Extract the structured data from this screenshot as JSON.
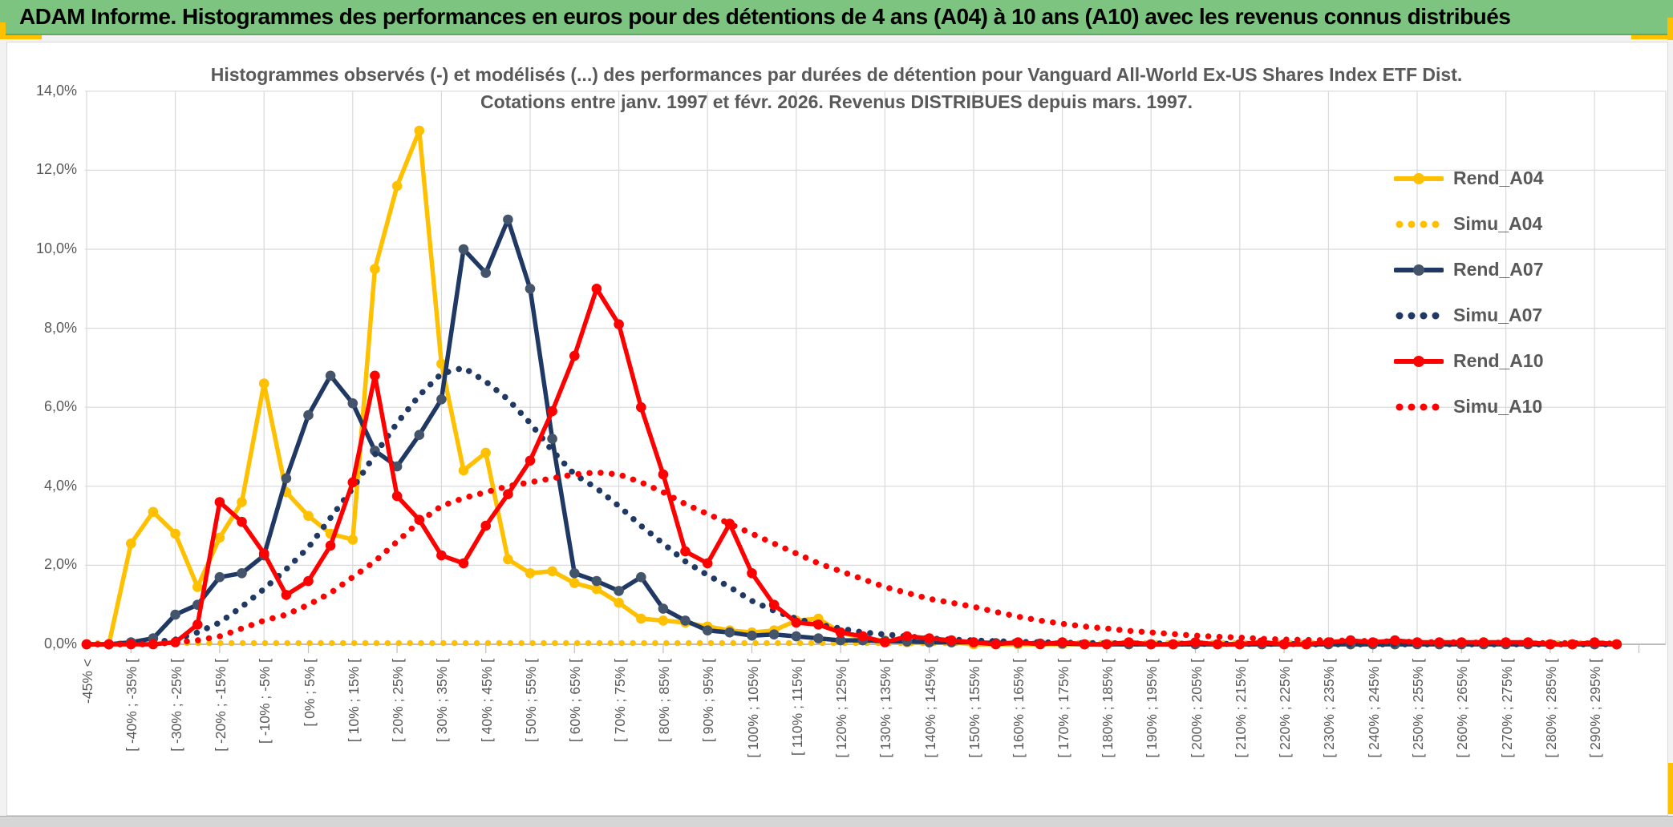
{
  "header": {
    "title": "ADAM Informe. Histogrammes des performances en euros pour des détentions de 4 ans (A04) à 10 ans (A10) avec les revenus connus distribués"
  },
  "colors": {
    "header_bg": "#7CC47F",
    "gold": "#FFC000",
    "navy": "#1F3864",
    "navy_marker": "#44546A",
    "red": "#FF0000",
    "grid": "#D9D9D9",
    "axis": "#A6A6A6",
    "tick": "#BFBFBF",
    "text_gray": "#595959"
  },
  "chart_data": {
    "type": "line",
    "title_line1": "Histogrammes observés (-) et modélisés (...) des performances par durées de détention pour Vanguard All-World Ex-US Shares Index ETF Dist.",
    "title_line2": "Cotations entre janv. 1997 et févr. 2026. Revenus DISTRIBUES depuis mars. 1997.",
    "ylim": [
      0,
      14
    ],
    "y_tick_step": 2,
    "y_tick_labels": [
      "0,0%",
      "2,0%",
      "4,0%",
      "6,0%",
      "8,0%",
      "10,0%",
      "12,0%",
      "14,0%"
    ],
    "grid": true,
    "legend_position": "right",
    "n_buckets": 70,
    "label_every": 2,
    "x_labels": [
      "-45% <",
      "[ -40% ; -35% [",
      "[ -30% ; -25% [",
      "[ -20% ; -15% [",
      "[ -10% ; -5% [",
      "[ 0% ; 5% [",
      "[ 10% ; 15% [",
      "[ 20% ; 25% [",
      "[ 30% ; 35% [",
      "[ 40% ; 45% [",
      "[ 50% ; 55% [",
      "[ 60% ; 65% [",
      "[ 70% ; 75% [",
      "[ 80% ; 85% [",
      "[ 90% ; 95% [",
      "[ 100% ; 105% [",
      "[ 110% ; 115% [",
      "[ 120% ; 125% [",
      "[ 130% ; 135% [",
      "[ 140% ; 145% [",
      "[ 150% ; 155% [",
      "[ 160% ; 165% [",
      "[ 170% ; 175% [",
      "[ 180% ; 185% [",
      "[ 190% ; 195% [",
      "[ 200% ; 205% [",
      "[ 210% ; 215% [",
      "[ 220% ; 225% [",
      "[ 230% ; 235% [",
      "[ 240% ; 245% [",
      "[ 250% ; 255% [",
      "[ 260% ; 265% [",
      "[ 270% ; 275% [",
      "[ 280% ; 285% [",
      "[ 290% ; 295% ["
    ],
    "series": [
      {
        "name": "Rend_A04",
        "color": "#FFC000",
        "marker_color": "#FFC000",
        "style": "solid",
        "marker": true,
        "values": [
          0,
          0,
          2.55,
          3.35,
          2.8,
          1.45,
          2.7,
          3.6,
          6.6,
          3.85,
          3.25,
          2.8,
          2.65,
          9.5,
          11.6,
          13.0,
          7.1,
          4.4,
          4.85,
          2.15,
          1.8,
          1.85,
          1.55,
          1.4,
          1.05,
          0.65,
          0.6,
          0.55,
          0.45,
          0.35,
          0.3,
          0.35,
          0.6,
          0.65,
          0.3,
          0.15,
          0.1,
          0.05,
          0.05,
          0.05,
          0,
          0,
          0,
          0,
          0,
          0,
          0,
          0,
          0,
          0,
          0,
          0,
          0,
          0,
          0,
          0,
          0,
          0,
          0,
          0,
          0,
          0,
          0,
          0,
          0,
          0,
          0,
          0,
          0,
          0
        ]
      },
      {
        "name": "Simu_A04",
        "color": "#FFC000",
        "marker_color": "#FFC000",
        "style": "dotted",
        "marker": false,
        "values": [
          0.03,
          0.03,
          0.03,
          0.03,
          0.03,
          0.03,
          0.03,
          0.03,
          0.03,
          0.03,
          0.03,
          0.03,
          0.03,
          0.03,
          0.03,
          0.03,
          0.03,
          0.03,
          0.03,
          0.03,
          0.03,
          0.03,
          0.03,
          0.03,
          0.03,
          0.03,
          0.03,
          0.03,
          0.03,
          0.03,
          0.03,
          0.03,
          0.03,
          0.03,
          0.03,
          0.03,
          0.03,
          0.03,
          0.03,
          0.03,
          0.03,
          0.03,
          0.03,
          0.03,
          0.03,
          0.03,
          0.03,
          0.03,
          0.03,
          0.03,
          0.03,
          0.03,
          0.03,
          0.03,
          0.03,
          0.03,
          0.03,
          0.03,
          0.03,
          0.03,
          0.03,
          0.03,
          0.03,
          0.03,
          0.03,
          0.03,
          0.03,
          0.03,
          0.03,
          0.03
        ]
      },
      {
        "name": "Rend_A07",
        "color": "#1F3864",
        "marker_color": "#44546A",
        "style": "solid",
        "marker": true,
        "values": [
          0,
          0,
          0.05,
          0.15,
          0.75,
          1.0,
          1.7,
          1.8,
          2.25,
          4.2,
          5.8,
          6.8,
          6.1,
          4.9,
          4.5,
          5.3,
          6.2,
          10.0,
          9.4,
          10.75,
          9.0,
          5.2,
          1.8,
          1.6,
          1.35,
          1.7,
          0.9,
          0.6,
          0.35,
          0.3,
          0.22,
          0.25,
          0.2,
          0.15,
          0.1,
          0.1,
          0.08,
          0.07,
          0.05,
          0.05,
          0.05,
          0.03,
          0.03,
          0.02,
          0.02,
          0,
          0,
          0,
          0,
          0,
          0,
          0,
          0,
          0,
          0,
          0,
          0,
          0,
          0,
          0,
          0,
          0,
          0,
          0,
          0,
          0,
          0,
          0,
          0,
          0
        ]
      },
      {
        "name": "Simu_A07",
        "color": "#1F3864",
        "marker_color": "#1F3864",
        "style": "dotted",
        "marker": false,
        "values": [
          0,
          0,
          0,
          0.05,
          0.12,
          0.3,
          0.55,
          0.95,
          1.4,
          1.9,
          2.45,
          3.2,
          3.95,
          4.8,
          5.6,
          6.3,
          6.85,
          7.0,
          6.65,
          6.2,
          5.6,
          4.9,
          4.3,
          3.95,
          3.5,
          3.0,
          2.55,
          2.1,
          1.75,
          1.45,
          1.1,
          0.85,
          0.65,
          0.5,
          0.4,
          0.3,
          0.25,
          0.2,
          0.15,
          0.12,
          0.1,
          0.08,
          0.06,
          0.05,
          0.04,
          0.03,
          0.03,
          0.02,
          0.02,
          0.02,
          0.01,
          0.01,
          0.01,
          0.01,
          0.01,
          0,
          0,
          0,
          0,
          0,
          0,
          0,
          0,
          0,
          0,
          0,
          0,
          0,
          0,
          0
        ]
      },
      {
        "name": "Rend_A10",
        "color": "#FF0000",
        "marker_color": "#FF0000",
        "style": "solid",
        "marker": true,
        "values": [
          0,
          0,
          0,
          0,
          0.05,
          0.5,
          3.6,
          3.1,
          2.3,
          1.25,
          1.6,
          2.5,
          4.1,
          6.8,
          3.75,
          3.15,
          2.25,
          2.05,
          3.0,
          3.8,
          4.65,
          5.9,
          7.3,
          9.0,
          8.1,
          6.0,
          4.3,
          2.35,
          2.05,
          3.05,
          1.8,
          1.0,
          0.55,
          0.5,
          0.3,
          0.2,
          0.05,
          0.2,
          0.15,
          0.1,
          0.05,
          0,
          0.05,
          0,
          0.05,
          0,
          0,
          0.05,
          0,
          0,
          0.05,
          0,
          0,
          0.05,
          0,
          0,
          0.05,
          0.1,
          0.05,
          0.1,
          0.05,
          0.05,
          0.05,
          0.05,
          0.05,
          0.05,
          0,
          0,
          0.05,
          0
        ]
      },
      {
        "name": "Simu_A10",
        "color": "#FF0000",
        "marker_color": "#FF0000",
        "style": "dotted",
        "marker": false,
        "values": [
          0,
          0,
          0,
          0,
          0.05,
          0.1,
          0.2,
          0.4,
          0.6,
          0.75,
          1.0,
          1.3,
          1.7,
          2.1,
          2.6,
          3.1,
          3.5,
          3.7,
          3.85,
          4.0,
          4.1,
          4.2,
          4.3,
          4.35,
          4.3,
          4.1,
          3.85,
          3.55,
          3.3,
          3.05,
          2.8,
          2.55,
          2.3,
          2.05,
          1.85,
          1.65,
          1.45,
          1.3,
          1.15,
          1.05,
          0.95,
          0.82,
          0.7,
          0.6,
          0.52,
          0.45,
          0.4,
          0.34,
          0.3,
          0.26,
          0.22,
          0.19,
          0.17,
          0.14,
          0.12,
          0.11,
          0.1,
          0.09,
          0.08,
          0.07,
          0.06,
          0.05,
          0.05,
          0.04,
          0.04,
          0.03,
          0.03,
          0.03,
          0.02,
          0.02
        ]
      }
    ]
  }
}
